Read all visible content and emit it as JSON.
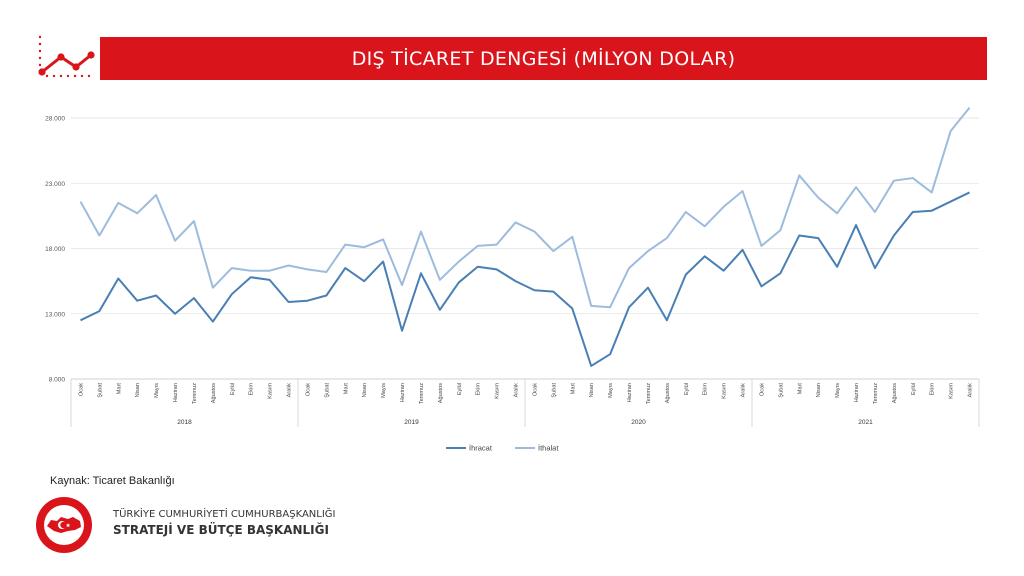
{
  "header": {
    "title": "DIŞ TİCARET DENGESİ (MİLYON DOLAR)"
  },
  "footer": {
    "source": "Kaynak: Ticaret Bakanlığı",
    "org_line1": "TÜRKİYE CUMHURİYETİ CUMHURBAŞKANLIĞI",
    "org_line2": "STRATEJİ VE BÜTÇE BAŞKANLIĞI",
    "logo_text": "T.C. CUMHURBAŞKANLIĞI STRATEJİ VE BÜTÇE BAŞKANLIĞI"
  },
  "colors": {
    "brand_red": "#d9141b",
    "ihracat": "#4a7fb5",
    "ithalat": "#9dbcdd"
  },
  "chart_data": {
    "type": "line",
    "title": "",
    "xlabel": "",
    "ylabel": "",
    "ylim": [
      8000,
      29000
    ],
    "yticks": [
      "8.000",
      "13.000",
      "18.000",
      "23.000",
      "28.000"
    ],
    "ytick_values": [
      8000,
      13000,
      18000,
      23000,
      28000
    ],
    "grid": true,
    "legend": "bottom",
    "years": [
      "2018",
      "2019",
      "2020",
      "2021"
    ],
    "months": [
      "Ocak",
      "Şubat",
      "Mart",
      "Nisan",
      "Mayıs",
      "Haziran",
      "Temmuz",
      "Ağustos",
      "Eylül",
      "Ekim",
      "Kasım",
      "Aralık"
    ],
    "series": [
      {
        "name": "İhracat",
        "color": "#4a7fb5",
        "values": [
          12500,
          13200,
          15700,
          14000,
          14400,
          13000,
          14200,
          12400,
          14500,
          15800,
          15600,
          13900,
          14000,
          14400,
          16500,
          15500,
          17000,
          11700,
          16100,
          13300,
          15400,
          16600,
          16400,
          15500,
          14800,
          14700,
          13400,
          9000,
          9900,
          13500,
          15000,
          12500,
          16000,
          17400,
          16300,
          17900,
          15100,
          16100,
          19000,
          18800,
          16600,
          19800,
          16500,
          19000,
          20800,
          20900,
          21600,
          22300
        ]
      },
      {
        "name": "İthalat",
        "color": "#9dbcdd",
        "values": [
          21600,
          19000,
          21500,
          20700,
          22100,
          18600,
          20100,
          15000,
          16500,
          16300,
          16300,
          16700,
          16400,
          16200,
          18300,
          18100,
          18700,
          15200,
          19300,
          15600,
          17000,
          18200,
          18300,
          20000,
          19300,
          17800,
          18900,
          13600,
          13500,
          16500,
          17800,
          18800,
          20800,
          19700,
          21200,
          22400,
          18200,
          19400,
          23600,
          21900,
          20700,
          22700,
          20800,
          23200,
          23400,
          22300,
          27000,
          28800
        ]
      }
    ]
  }
}
